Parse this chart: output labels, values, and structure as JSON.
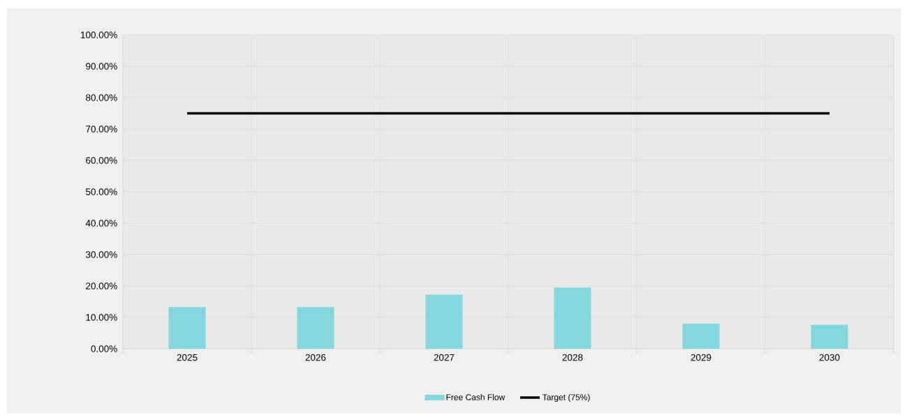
{
  "chart_data": {
    "type": "bar",
    "categories": [
      "2025",
      "2026",
      "2027",
      "2028",
      "2029",
      "2030"
    ],
    "series": [
      {
        "name": "Free Cash Flow",
        "color": "#82d8dd",
        "values": [
          13.3,
          13.3,
          17.2,
          19.5,
          8.0,
          7.6
        ]
      },
      {
        "name": "Target (75%)",
        "type": "line",
        "color": "#000000",
        "values": [
          75,
          75,
          75,
          75,
          75,
          75
        ]
      }
    ],
    "ylim": [
      0,
      100
    ],
    "yticks": [
      {
        "value": 0,
        "label": "0.00%"
      },
      {
        "value": 10,
        "label": "10.00%"
      },
      {
        "value": 20,
        "label": "20.00%"
      },
      {
        "value": 30,
        "label": "30.00%"
      },
      {
        "value": 40,
        "label": "40.00%"
      },
      {
        "value": 50,
        "label": "50.00%"
      },
      {
        "value": 60,
        "label": "60.00%"
      },
      {
        "value": 70,
        "label": "70.00%"
      },
      {
        "value": 80,
        "label": "80.00%"
      },
      {
        "value": 90,
        "label": "90.00%"
      },
      {
        "value": 100,
        "label": "100.00%"
      }
    ],
    "grid": true,
    "legend": "bottom"
  }
}
